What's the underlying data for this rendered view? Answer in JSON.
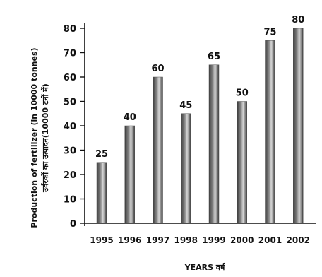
{
  "chart_data": {
    "type": "bar",
    "categories": [
      "1995",
      "1996",
      "1997",
      "1998",
      "1999",
      "2000",
      "2001",
      "2002"
    ],
    "values": [
      25,
      40,
      60,
      45,
      65,
      50,
      75,
      80
    ],
    "ylabel_line1": "Production of fertilizer (in 10000 tonnes)",
    "ylabel_line2": "उर्वरकों का उत्पादन(10000 टनों में)",
    "xlabel": "YEARS वर्ष",
    "ylim": [
      0,
      80
    ],
    "yticks": [
      0,
      10,
      20,
      30,
      40,
      50,
      60,
      70,
      80
    ],
    "grid": false
  },
  "colors": {
    "bar_dark": "#3a3a3a",
    "bar_light": "#d8d8d8",
    "axis": "#111111"
  }
}
